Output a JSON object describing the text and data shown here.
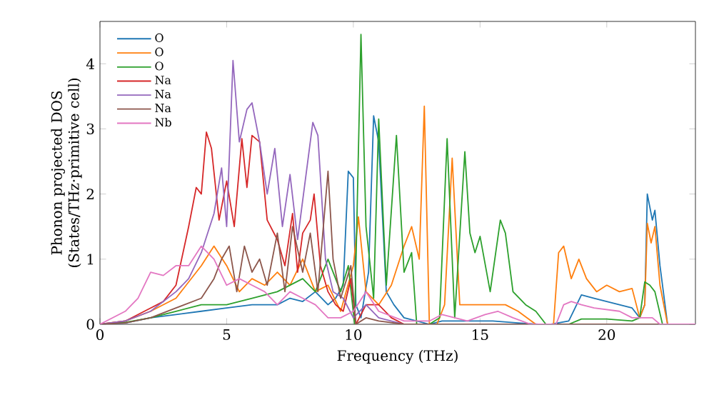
{
  "chart_data": {
    "type": "line",
    "xlabel": "Frequency (THz)",
    "ylabel": "Phonon projected DOS (States/THz·primitive cell)",
    "xlim": [
      0,
      23.5
    ],
    "ylim": [
      0,
      4.65
    ],
    "xticks": [
      0,
      5,
      10,
      15,
      20
    ],
    "yticks": [
      0,
      1,
      2,
      3,
      4
    ],
    "legend": "top left",
    "grid": false,
    "line_style": "solid",
    "series": [
      {
        "name": "O",
        "color": "#1f77b4",
        "x": [
          0,
          1,
          2,
          3,
          4,
          5,
          6,
          7,
          7.5,
          8,
          8.5,
          9,
          9.3,
          9.6,
          9.8,
          10.0,
          10.1,
          10.3,
          10.6,
          10.8,
          11.0,
          11.3,
          11.6,
          12.0,
          12.5,
          13.0,
          13.5,
          14.5,
          15.5,
          16.5,
          17.3,
          17.8,
          18.5,
          19.0,
          19.5,
          20.0,
          20.5,
          21.0,
          21.3,
          21.5,
          21.6,
          21.8,
          21.9,
          22.1,
          22.4,
          23.5
        ],
        "values": [
          0,
          0.02,
          0.1,
          0.15,
          0.2,
          0.25,
          0.3,
          0.3,
          0.4,
          0.35,
          0.5,
          0.3,
          0.4,
          0.6,
          2.35,
          2.25,
          0.3,
          0.1,
          0.8,
          3.2,
          2.8,
          0.5,
          0.3,
          0.1,
          0.05,
          0,
          0.05,
          0.05,
          0.05,
          0.02,
          0,
          0,
          0.05,
          0.45,
          0.4,
          0.35,
          0.3,
          0.25,
          0.1,
          0.3,
          2.0,
          1.6,
          1.75,
          0.9,
          0,
          0
        ]
      },
      {
        "name": "O",
        "color": "#ff7f0e",
        "x": [
          0,
          1,
          2,
          3,
          4,
          4.5,
          5,
          5.5,
          6,
          6.5,
          7,
          7.5,
          8,
          8.5,
          9,
          9.5,
          10.0,
          10.2,
          10.5,
          11,
          11.5,
          12,
          12.3,
          12.6,
          12.8,
          13.0,
          13.3,
          13.6,
          13.9,
          14.2,
          15,
          16,
          16.5,
          17.2,
          17.9,
          18.1,
          18.3,
          18.6,
          18.9,
          19.2,
          19.6,
          20,
          20.5,
          21,
          21.3,
          21.5,
          21.6,
          21.75,
          21.9,
          22.1,
          22.4,
          23.5
        ],
        "values": [
          0,
          0.05,
          0.2,
          0.4,
          0.9,
          1.2,
          0.9,
          0.5,
          0.7,
          0.6,
          0.8,
          0.6,
          1.0,
          0.5,
          0.6,
          0.2,
          0.9,
          1.65,
          0.5,
          0.3,
          0.6,
          1.2,
          1.5,
          1.0,
          3.35,
          0,
          0,
          0.3,
          2.55,
          0.3,
          0.3,
          0.3,
          0.2,
          0,
          0,
          1.1,
          1.2,
          0.7,
          1.0,
          0.7,
          0.5,
          0.6,
          0.5,
          0.55,
          0.1,
          0.3,
          1.55,
          1.25,
          1.5,
          0.6,
          0,
          0
        ]
      },
      {
        "name": "O",
        "color": "#2ca02c",
        "x": [
          0,
          1,
          2,
          3,
          4,
          5,
          6,
          7,
          8,
          8.5,
          9,
          9.5,
          9.8,
          10.05,
          10.3,
          10.5,
          10.8,
          11.0,
          11.3,
          11.7,
          12.0,
          12.3,
          12.5,
          13.0,
          13.4,
          13.7,
          14.0,
          14.4,
          14.6,
          14.8,
          15.0,
          15.4,
          15.8,
          16.0,
          16.3,
          16.8,
          17.2,
          17.6,
          18.5,
          19,
          20,
          21,
          21.3,
          21.5,
          21.7,
          21.9,
          22.2,
          23.5
        ],
        "values": [
          0,
          0.03,
          0.1,
          0.2,
          0.3,
          0.3,
          0.4,
          0.5,
          0.7,
          0.5,
          1.0,
          0.5,
          0.9,
          0,
          4.45,
          1.5,
          0.4,
          3.15,
          0.6,
          2.9,
          0.8,
          1.1,
          0,
          0,
          0.1,
          2.85,
          0.1,
          2.65,
          1.4,
          1.1,
          1.35,
          0.5,
          1.6,
          1.4,
          0.5,
          0.3,
          0.2,
          0,
          0,
          0.08,
          0.08,
          0.05,
          0.1,
          0.65,
          0.6,
          0.5,
          0,
          0
        ]
      },
      {
        "name": "Na",
        "color": "#d62728",
        "x": [
          0,
          1,
          2,
          2.5,
          3,
          3.5,
          3.8,
          4.0,
          4.2,
          4.4,
          4.7,
          5.0,
          5.3,
          5.6,
          5.8,
          6.0,
          6.3,
          6.6,
          7.0,
          7.3,
          7.6,
          7.8,
          8.0,
          8.3,
          8.45,
          8.7,
          9.0,
          9.3,
          9.6,
          9.9,
          10.1,
          10.5,
          11,
          11.5,
          12,
          23.5
        ],
        "values": [
          0,
          0.05,
          0.25,
          0.35,
          0.6,
          1.5,
          2.1,
          2.0,
          2.95,
          2.7,
          1.6,
          2.2,
          1.5,
          2.85,
          2.1,
          2.9,
          2.8,
          1.6,
          1.3,
          0.9,
          1.7,
          0.8,
          1.4,
          1.6,
          2.0,
          0.9,
          0.5,
          0.3,
          0.2,
          0.7,
          0,
          0.3,
          0.3,
          0.1,
          0,
          0
        ]
      },
      {
        "name": "Na",
        "color": "#9467bd",
        "x": [
          0,
          1,
          2,
          3,
          3.5,
          4,
          4.5,
          4.8,
          5.0,
          5.25,
          5.5,
          5.8,
          6.0,
          6.3,
          6.6,
          6.9,
          7.2,
          7.5,
          7.8,
          8.1,
          8.4,
          8.6,
          8.9,
          9.2,
          9.6,
          10,
          10.5,
          11,
          12,
          23.5
        ],
        "values": [
          0,
          0.05,
          0.2,
          0.5,
          0.7,
          1.1,
          1.7,
          2.4,
          1.5,
          4.05,
          2.8,
          3.3,
          3.4,
          2.8,
          2.0,
          2.7,
          1.5,
          2.3,
          1.3,
          2.2,
          3.1,
          2.9,
          1.0,
          0.5,
          0.4,
          0.1,
          0.3,
          0.1,
          0,
          0
        ]
      },
      {
        "name": "Na",
        "color": "#8c564b",
        "x": [
          0,
          1,
          2,
          3,
          4,
          4.5,
          4.8,
          5.1,
          5.4,
          5.7,
          6,
          6.3,
          6.6,
          7,
          7.3,
          7.6,
          8,
          8.3,
          8.6,
          9.0,
          9.2,
          9.5,
          9.9,
          10.1,
          10.5,
          11,
          12,
          23.5
        ],
        "values": [
          0,
          0.02,
          0.1,
          0.25,
          0.4,
          0.7,
          1.0,
          1.2,
          0.5,
          1.2,
          0.8,
          1.0,
          0.6,
          1.4,
          0.5,
          1.5,
          0.8,
          1.4,
          0.5,
          2.35,
          1.0,
          0.4,
          0.9,
          0,
          0.1,
          0.05,
          0,
          0
        ]
      },
      {
        "name": "Nb",
        "color": "#e377c2",
        "x": [
          0,
          1,
          1.5,
          2,
          2.5,
          3,
          3.5,
          4,
          4.5,
          5,
          5.5,
          6,
          6.5,
          7,
          7.5,
          8,
          8.5,
          9,
          9.5,
          10,
          10.5,
          11,
          12,
          13,
          13.5,
          14.5,
          15.2,
          15.7,
          16.3,
          17,
          18,
          18.3,
          18.6,
          19,
          19.5,
          20.5,
          21,
          21.5,
          21.8,
          22.1,
          23.5
        ],
        "values": [
          0,
          0.2,
          0.4,
          0.8,
          0.75,
          0.9,
          0.9,
          1.2,
          1.0,
          0.6,
          0.7,
          0.6,
          0.5,
          0.3,
          0.5,
          0.4,
          0.3,
          0.1,
          0.1,
          0.2,
          0.5,
          0.2,
          0.05,
          0.05,
          0.15,
          0.05,
          0.15,
          0.2,
          0.1,
          0,
          0,
          0.3,
          0.35,
          0.3,
          0.25,
          0.2,
          0.1,
          0.1,
          0.1,
          0,
          0
        ]
      }
    ]
  }
}
